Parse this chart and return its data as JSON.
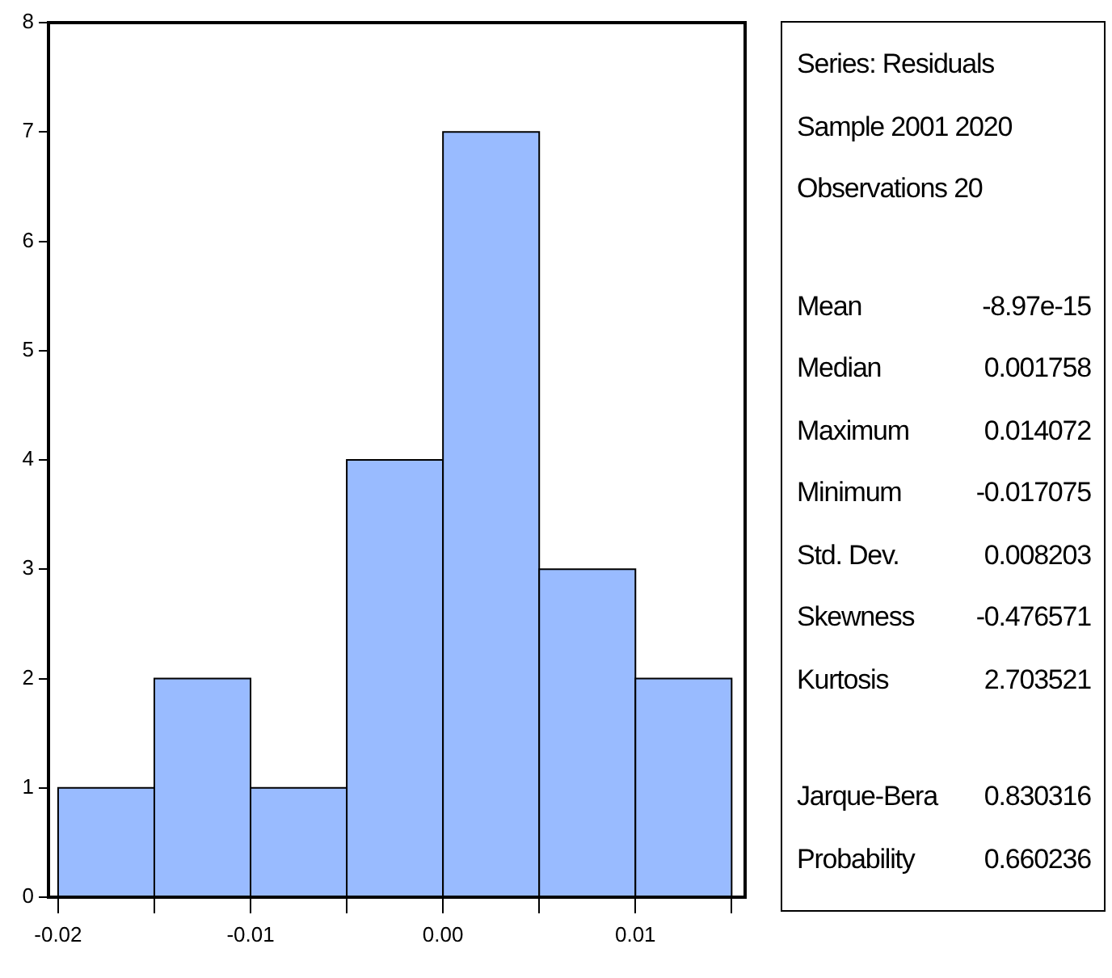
{
  "chart_data": {
    "type": "histogram",
    "bins": [
      -0.02,
      -0.015,
      -0.01,
      -0.005,
      0,
      0.005,
      0.01,
      0.015
    ],
    "values": [
      1,
      2,
      1,
      4,
      7,
      3,
      2
    ],
    "color": "#99bbff",
    "xlim": [
      -0.0205,
      0.0157
    ],
    "xticks": [
      -0.02,
      {
        "value": -0.015,
        "label": null
      },
      -0.01,
      {
        "value": -0.005,
        "label": null
      },
      {
        "value": 0,
        "label": "0.00"
      },
      {
        "value": 0.005,
        "label": null
      },
      0.01,
      {
        "value": 0.015,
        "label": null
      }
    ],
    "ylim": [
      0,
      8
    ],
    "yticks": [
      0,
      1,
      2,
      3,
      4,
      5,
      6,
      7,
      8
    ],
    "grid": false,
    "legend": false,
    "annotations": [
      "Series: Residuals\nSample 2001 2020\nObservations 20",
      "Mean\t-8.97e-15\nMedian\t0.001758\nMaximum\t0.014072\nMinimum\t-0.017075\nStd. Dev.\t0.008203\nSkewness\t-0.476571\nKurtosis\t2.703521",
      "Jarque-Bera\t0.830316\nProbability\t0.660236"
    ]
  }
}
